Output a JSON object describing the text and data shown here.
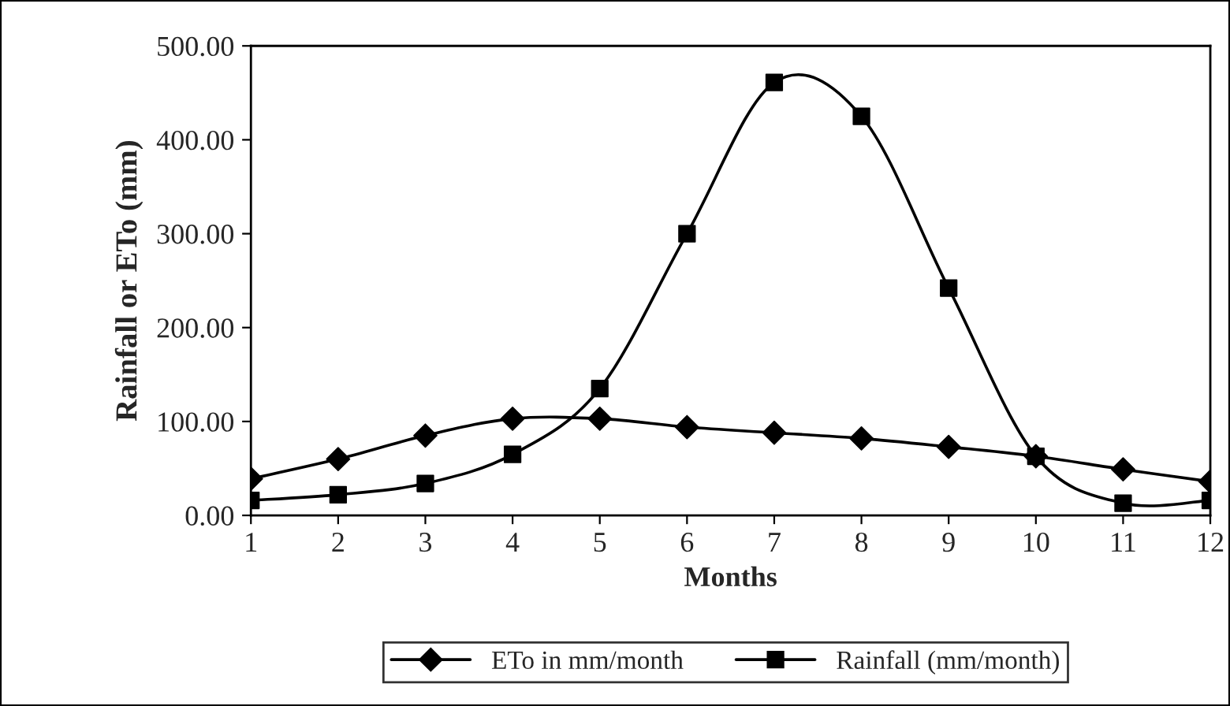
{
  "chart_data": {
    "type": "line",
    "xlabel": "Months",
    "ylabel": "Rainfall or ETo (mm)",
    "x": [
      1,
      2,
      3,
      4,
      5,
      6,
      7,
      8,
      9,
      10,
      11,
      12
    ],
    "series": [
      {
        "name": "ETo in mm/month",
        "color": "#000000",
        "marker": "diamond",
        "values": [
          39,
          60,
          85,
          103,
          103,
          94,
          88,
          82,
          73,
          63,
          49,
          36
        ]
      },
      {
        "name": "Rainfall (mm/month)",
        "color": "#000000",
        "marker": "square",
        "values": [
          16,
          22,
          34,
          65,
          135,
          300,
          461,
          425,
          242,
          63,
          13,
          16
        ]
      }
    ],
    "xlim": [
      1,
      12
    ],
    "xticks": [
      1,
      2,
      3,
      4,
      5,
      6,
      7,
      8,
      9,
      10,
      11,
      12
    ],
    "ylim": [
      0,
      500
    ],
    "yticks": [
      {
        "value": 0,
        "label": "0.00"
      },
      {
        "value": 100,
        "label": "100.00"
      },
      {
        "value": 200,
        "label": "200.00"
      },
      {
        "value": 300,
        "label": "300.00"
      },
      {
        "value": 400,
        "label": "400.00"
      },
      {
        "value": 500,
        "label": "500.00"
      }
    ],
    "grid": false,
    "legend": "bottom",
    "line_style": "solid"
  }
}
